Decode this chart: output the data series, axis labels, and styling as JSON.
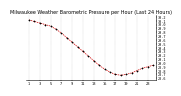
{
  "title": "Milwaukee Weather Barometric Pressure per Hour (Last 24 Hours)",
  "x_values": [
    0,
    1,
    2,
    3,
    4,
    5,
    6,
    7,
    8,
    9,
    10,
    11,
    12,
    13,
    14,
    15,
    16,
    17,
    18,
    19,
    20,
    21,
    22,
    23
  ],
  "y_values": [
    30.12,
    30.08,
    30.04,
    30.0,
    29.96,
    29.88,
    29.78,
    29.66,
    29.54,
    29.42,
    29.3,
    29.18,
    29.06,
    28.94,
    28.84,
    28.76,
    28.7,
    28.68,
    28.7,
    28.74,
    28.8,
    28.86,
    28.9,
    28.94
  ],
  "line_color": "#cc0000",
  "marker_color": "#000000",
  "bg_color": "#ffffff",
  "grid_color": "#999999",
  "ylim": [
    28.55,
    30.25
  ],
  "xlim": [
    -0.5,
    23.5
  ],
  "ytick_values": [
    30.2,
    30.1,
    30.0,
    29.9,
    29.8,
    29.7,
    29.6,
    29.5,
    29.4,
    29.3,
    29.2,
    29.1,
    29.0,
    28.9,
    28.8,
    28.7,
    28.6
  ],
  "ytick_labels": [
    "30.2",
    "30.1",
    "30.0",
    "29.9",
    "29.8",
    "29.7",
    "29.6",
    "29.5",
    "29.4",
    "29.3",
    "29.2",
    "29.1",
    "29.0",
    "28.9",
    "28.8",
    "28.7",
    "28.6"
  ],
  "xtick_positions": [
    0,
    2,
    4,
    6,
    8,
    10,
    12,
    14,
    16,
    18,
    20,
    22
  ],
  "xtick_labels": [
    "1",
    "3",
    "5",
    "7",
    "9",
    "11",
    "13",
    "15",
    "17",
    "19",
    "21",
    "23"
  ],
  "vgrid_positions": [
    0,
    2,
    4,
    6,
    8,
    10,
    12,
    14,
    16,
    18,
    20,
    22
  ],
  "title_fontsize": 3.5,
  "tick_fontsize": 2.5,
  "marker_size": 1.2,
  "line_width": 0.5
}
